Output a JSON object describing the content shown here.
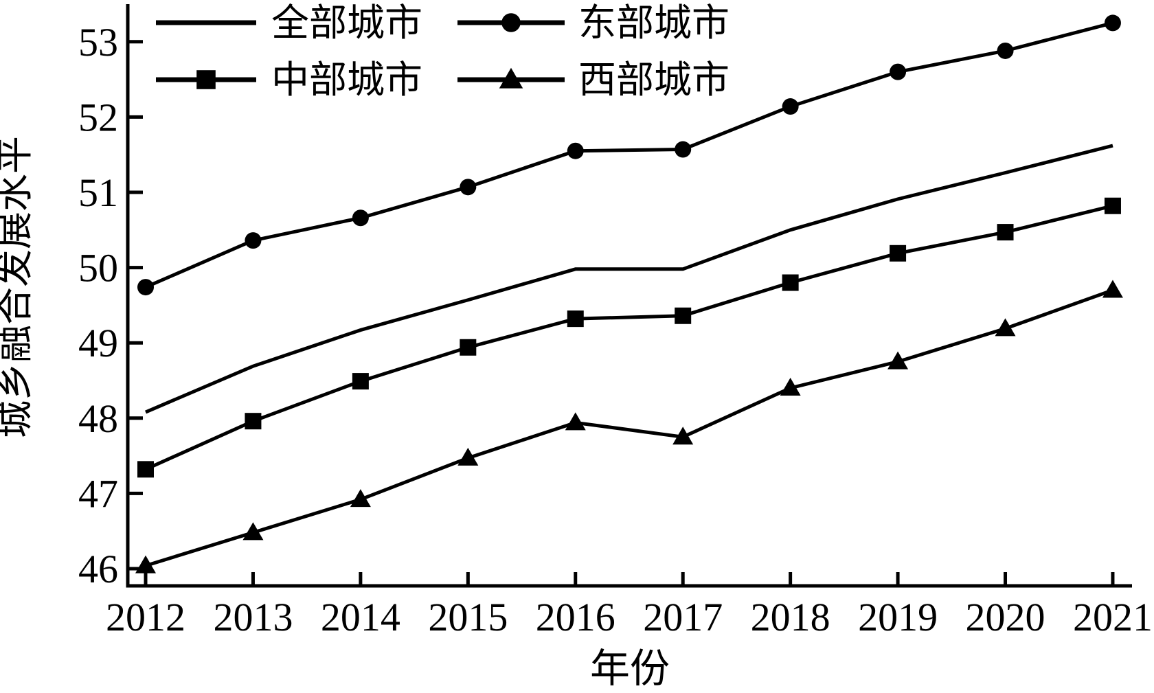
{
  "chart_data": {
    "type": "line",
    "title": "",
    "xlabel": "年份",
    "ylabel": "城乡融合发展水平",
    "x": [
      2012,
      2013,
      2014,
      2015,
      2016,
      2017,
      2018,
      2019,
      2020,
      2021
    ],
    "yticks": [
      46,
      47,
      48,
      49,
      50,
      51,
      52,
      53
    ],
    "ylim": [
      45.78,
      53.55
    ],
    "grid": false,
    "background": "#ffffff",
    "stroke_color": "#000000",
    "legend": {
      "position": "top-left",
      "columns": 2,
      "row1": [
        "全部城市",
        "东部城市"
      ],
      "row2": [
        "中部城市",
        "西部城市"
      ]
    },
    "series": [
      {
        "name": "全部城市",
        "marker": "none",
        "values": [
          48.08,
          48.69,
          49.17,
          49.57,
          49.98,
          49.98,
          50.5,
          50.91,
          51.26,
          51.62
        ]
      },
      {
        "name": "东部城市",
        "marker": "circle",
        "values": [
          49.74,
          50.36,
          50.66,
          51.07,
          51.55,
          51.57,
          52.14,
          52.6,
          52.88,
          53.25
        ]
      },
      {
        "name": "中部城市",
        "marker": "square",
        "values": [
          47.32,
          47.96,
          48.49,
          48.94,
          49.32,
          49.36,
          49.8,
          50.19,
          50.47,
          50.82
        ]
      },
      {
        "name": "西部城市",
        "marker": "triangle",
        "values": [
          46.04,
          46.48,
          46.92,
          47.47,
          47.94,
          47.75,
          48.4,
          48.75,
          49.19,
          49.7
        ]
      }
    ]
  }
}
